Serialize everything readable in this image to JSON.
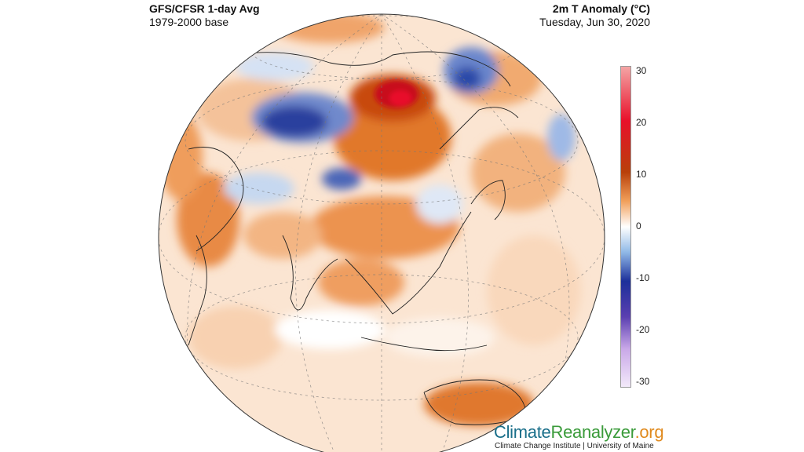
{
  "header": {
    "left_title": "GFS/CFSR 1-day Avg",
    "left_subtitle": "1979-2000 base",
    "right_title": "2m T Anomaly (°C)",
    "right_subtitle": "Tuesday, Jun 30, 2020"
  },
  "colorbar": {
    "ticks": [
      "30",
      "20",
      "10",
      "0",
      "-10",
      "-20",
      "-30"
    ],
    "colors": [
      "#f4a6a6",
      "#e8102a",
      "#c0460c",
      "#f1a05b",
      "#ffffff",
      "#8fb8e6",
      "#1c2f9a",
      "#5a3fb0",
      "#c9a8e8",
      "#f3eafa"
    ]
  },
  "branding": {
    "part1": "Climate",
    "part2": "Reanalyzer",
    "part3": ".org",
    "credit": "Climate Change Institute | University of Maine"
  },
  "map": {
    "projection": "orthographic",
    "center": "Asia / Pacific"
  }
}
